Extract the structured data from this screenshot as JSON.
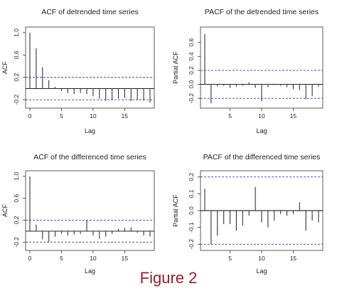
{
  "caption": "Figure 2",
  "colors": {
    "bound": "#3b3bbf",
    "bar": "#333333",
    "zero": "#000000",
    "caption": "#9b1c2c"
  },
  "chart_data": [
    {
      "type": "bar",
      "title": "ACF of detrended time series",
      "xlabel": "Lag",
      "ylabel": "ACF",
      "xlim": [
        0,
        19
      ],
      "ylim": [
        -0.3,
        1.05
      ],
      "xticks": [
        0,
        5,
        10,
        15
      ],
      "yticks": [
        -0.2,
        0.2,
        0.6,
        1.0
      ],
      "ytick_labels": [
        "-0.2",
        "0.2",
        "0.6",
        "1.0"
      ],
      "conf_bound": 0.2,
      "x": [
        0,
        1,
        2,
        3,
        4,
        5,
        6,
        7,
        8,
        9,
        10,
        11,
        12,
        13,
        14,
        15,
        16,
        17,
        18,
        19
      ],
      "values": [
        1.0,
        0.72,
        0.38,
        0.15,
        0.03,
        -0.04,
        -0.08,
        -0.1,
        -0.08,
        -0.1,
        -0.14,
        -0.18,
        -0.22,
        -0.2,
        -0.18,
        -0.17,
        -0.22,
        -0.2,
        -0.22,
        -0.25
      ]
    },
    {
      "type": "bar",
      "title": "PACF of the detrended time series",
      "xlabel": "Lag",
      "ylabel": "Partial ACF",
      "xlim": [
        1,
        19
      ],
      "ylim": [
        -0.3,
        0.78
      ],
      "xticks": [
        5,
        10,
        15
      ],
      "yticks": [
        -0.2,
        0.0,
        0.2,
        0.4,
        0.6
      ],
      "ytick_labels": [
        "-0.2",
        "0.0",
        "0.2",
        "0.4",
        "0.6"
      ],
      "conf_bound": 0.2,
      "x": [
        1,
        2,
        3,
        4,
        5,
        6,
        7,
        8,
        9,
        10,
        11,
        12,
        13,
        14,
        15,
        16,
        17,
        18,
        19
      ],
      "values": [
        0.72,
        -0.27,
        -0.03,
        -0.02,
        -0.05,
        -0.03,
        -0.02,
        0.03,
        -0.05,
        -0.24,
        -0.04,
        -0.01,
        -0.02,
        -0.04,
        -0.07,
        -0.08,
        -0.21,
        -0.17,
        -0.03
      ]
    },
    {
      "type": "bar",
      "title": "ACF of the differenced time series",
      "xlabel": "Lag",
      "ylabel": "ACF",
      "xlim": [
        0,
        19
      ],
      "ylim": [
        -0.3,
        1.05
      ],
      "xticks": [
        0,
        5,
        10,
        15
      ],
      "yticks": [
        -0.2,
        0.2,
        0.6,
        1.0
      ],
      "ytick_labels": [
        "-0.2",
        "0.2",
        "0.6",
        "1.0"
      ],
      "conf_bound": 0.2,
      "x": [
        0,
        1,
        2,
        3,
        4,
        5,
        6,
        7,
        8,
        9,
        10,
        11,
        12,
        13,
        14,
        15,
        16,
        17,
        18,
        19
      ],
      "values": [
        1.0,
        0.12,
        -0.15,
        -0.2,
        -0.1,
        -0.05,
        -0.08,
        -0.06,
        -0.05,
        0.2,
        -0.08,
        -0.14,
        -0.1,
        -0.05,
        0.04,
        0.06,
        0.07,
        -0.03,
        -0.08,
        -0.1
      ]
    },
    {
      "type": "bar",
      "title": "PACF of the differenced time series",
      "xlabel": "Lag",
      "ylabel": "Partial ACF",
      "xlim": [
        1,
        19
      ],
      "ylim": [
        -0.22,
        0.22
      ],
      "xticks": [
        5,
        10,
        15
      ],
      "yticks": [
        -0.2,
        -0.1,
        0.0,
        0.1,
        0.2
      ],
      "ytick_labels": [
        "-0.2",
        "-0.1",
        "0.0",
        "0.1",
        "0.2"
      ],
      "conf_bound": 0.2,
      "x": [
        1,
        2,
        3,
        4,
        5,
        6,
        7,
        8,
        9,
        10,
        11,
        12,
        13,
        14,
        15,
        16,
        17,
        18,
        19
      ],
      "values": [
        0.13,
        -0.2,
        -0.15,
        -0.08,
        -0.08,
        -0.12,
        -0.09,
        -0.03,
        0.14,
        -0.07,
        -0.1,
        -0.06,
        -0.02,
        -0.03,
        -0.02,
        0.05,
        -0.12,
        -0.06,
        -0.07
      ]
    }
  ]
}
